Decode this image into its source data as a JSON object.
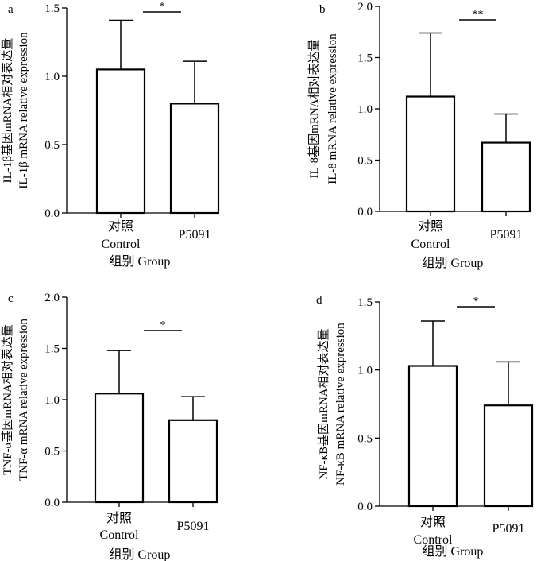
{
  "figure": {
    "panels": [
      "a",
      "b",
      "c",
      "d"
    ]
  },
  "colors": {
    "axis": "#000000",
    "bar_fill": "#ffffff",
    "bar_edge": "#000000"
  },
  "chart_data": [
    {
      "type": "bar",
      "panel": "a",
      "categories": [
        "对照 Control",
        "P5091"
      ],
      "category_labels": [
        [
          "对照",
          "Control"
        ],
        [
          "P5091"
        ]
      ],
      "values": [
        1.05,
        0.8
      ],
      "errors": [
        0.36,
        0.31
      ],
      "ylim": [
        0,
        1.5
      ],
      "yticks": [
        "0.0",
        "0.5",
        "1.0",
        "1.5"
      ],
      "ytick_values": [
        0,
        0.5,
        1.0,
        1.5
      ],
      "xlabel": "组别  Group",
      "ylabel_lines": [
        "IL-1β基因mRNA相对表达量",
        "IL-1β mRNA relative expression"
      ],
      "significance": "*"
    },
    {
      "type": "bar",
      "panel": "b",
      "categories": [
        "对照 Control",
        "P5091"
      ],
      "category_labels": [
        [
          "对照",
          "Control"
        ],
        [
          "P5091"
        ]
      ],
      "values": [
        1.12,
        0.67
      ],
      "errors": [
        0.62,
        0.28
      ],
      "ylim": [
        0,
        2.0
      ],
      "yticks": [
        "0.0",
        "0.5",
        "1.0",
        "1.5",
        "2.0"
      ],
      "ytick_values": [
        0,
        0.5,
        1.0,
        1.5,
        2.0
      ],
      "xlabel": "组别  Group",
      "ylabel_lines": [
        "IL-8基因mRNA相对表达量",
        "IL-8 mRNA relative expression"
      ],
      "significance": "**"
    },
    {
      "type": "bar",
      "panel": "c",
      "categories": [
        "对照 Control",
        "P5091"
      ],
      "category_labels": [
        [
          "对照",
          "Control"
        ],
        [
          "P5091"
        ]
      ],
      "values": [
        1.06,
        0.8
      ],
      "errors": [
        0.42,
        0.23
      ],
      "ylim": [
        0,
        2.0
      ],
      "yticks": [
        "0.0",
        "0.5",
        "1.0",
        "1.5",
        "2.0"
      ],
      "ytick_values": [
        0,
        0.5,
        1.0,
        1.5,
        2.0
      ],
      "xlabel": "组别  Group",
      "ylabel_lines": [
        "TNF-α基因mRNA相对表达量",
        "TNF-α mRNA relative expression"
      ],
      "significance": "*"
    },
    {
      "type": "bar",
      "panel": "d",
      "categories": [
        "对照 Control",
        "P5091"
      ],
      "category_labels": [
        [
          "对照",
          "Control"
        ],
        [
          "P5091"
        ]
      ],
      "values": [
        1.03,
        0.74
      ],
      "errors": [
        0.33,
        0.32
      ],
      "ylim": [
        0,
        1.5
      ],
      "yticks": [
        "0.0",
        "0.5",
        "1.0",
        "1.5"
      ],
      "ytick_values": [
        0,
        0.5,
        1.0,
        1.5
      ],
      "xlabel": "组别  Group",
      "ylabel_lines": [
        "NF-κB基因mRNA相对表达量",
        "NF-κB mRNA relative expression"
      ],
      "significance": "*"
    }
  ]
}
